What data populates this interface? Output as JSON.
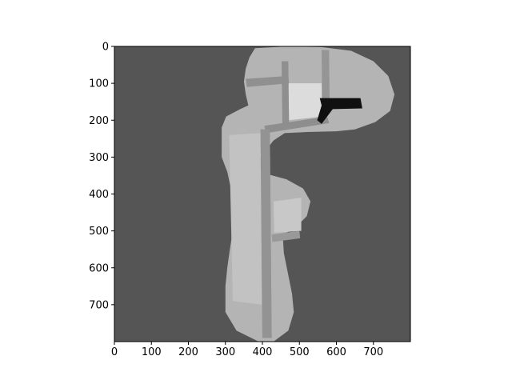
{
  "chart_data": {
    "type": "heatmap",
    "title": "",
    "xlabel": "",
    "ylabel": "",
    "xlim": [
      0,
      800
    ],
    "ylim": [
      800,
      0
    ],
    "x_ticks": [
      "0",
      "100",
      "200",
      "300",
      "400",
      "500",
      "600",
      "700"
    ],
    "y_ticks": [
      "0",
      "100",
      "200",
      "300",
      "400",
      "500",
      "600",
      "700"
    ],
    "colormap": "gray",
    "background_value_color": "#555555",
    "map_outline": [
      [
        380,
        5
      ],
      [
        470,
        0
      ],
      [
        560,
        2
      ],
      [
        640,
        12
      ],
      [
        700,
        40
      ],
      [
        740,
        80
      ],
      [
        757,
        130
      ],
      [
        745,
        175
      ],
      [
        705,
        205
      ],
      [
        650,
        225
      ],
      [
        600,
        230
      ],
      [
        520,
        232
      ],
      [
        460,
        235
      ],
      [
        430,
        255
      ],
      [
        395,
        300
      ],
      [
        390,
        330
      ],
      [
        420,
        348
      ],
      [
        465,
        360
      ],
      [
        510,
        385
      ],
      [
        530,
        420
      ],
      [
        520,
        460
      ],
      [
        485,
        495
      ],
      [
        455,
        510
      ],
      [
        458,
        560
      ],
      [
        470,
        620
      ],
      [
        480,
        670
      ],
      [
        485,
        720
      ],
      [
        470,
        770
      ],
      [
        430,
        800
      ],
      [
        390,
        800
      ],
      [
        330,
        770
      ],
      [
        300,
        720
      ],
      [
        300,
        650
      ],
      [
        305,
        600
      ],
      [
        312,
        550
      ],
      [
        320,
        500
      ],
      [
        325,
        460
      ],
      [
        318,
        400
      ],
      [
        305,
        340
      ],
      [
        290,
        300
      ],
      [
        290,
        220
      ],
      [
        302,
        190
      ],
      [
        340,
        170
      ],
      [
        362,
        160
      ],
      [
        355,
        130
      ],
      [
        350,
        95
      ],
      [
        355,
        60
      ],
      [
        365,
        30
      ]
    ],
    "corridors": [
      {
        "polygon": [
          [
            355,
            88
          ],
          [
            470,
            80
          ],
          [
            472,
            100
          ],
          [
            358,
            110
          ]
        ],
        "shade": "#909090"
      },
      {
        "polygon": [
          [
            452,
            40
          ],
          [
            470,
            40
          ],
          [
            472,
            220
          ],
          [
            454,
            222
          ]
        ],
        "shade": "#8f8f8f"
      },
      {
        "polygon": [
          [
            560,
            10
          ],
          [
            580,
            10
          ],
          [
            582,
            180
          ],
          [
            562,
            180
          ]
        ],
        "shade": "#959595"
      },
      {
        "polygon": [
          [
            405,
            215
          ],
          [
            575,
            190
          ],
          [
            580,
            208
          ],
          [
            410,
            235
          ]
        ],
        "shade": "#8e8e8e"
      },
      {
        "polygon": [
          [
            395,
            225
          ],
          [
            420,
            225
          ],
          [
            425,
            790
          ],
          [
            400,
            790
          ]
        ],
        "shade": "#939393"
      },
      {
        "polygon": [
          [
            395,
            225
          ],
          [
            420,
            225
          ],
          [
            425,
            790
          ],
          [
            400,
            790
          ]
        ],
        "shade": "#939393"
      },
      {
        "polygon": [
          [
            425,
            510
          ],
          [
            500,
            500
          ],
          [
            502,
            520
          ],
          [
            427,
            530
          ]
        ],
        "shade": "#999999"
      }
    ],
    "dark_region": {
      "polygon": [
        [
          555,
          140
        ],
        [
          665,
          140
        ],
        [
          670,
          168
        ],
        [
          590,
          170
        ],
        [
          560,
          210
        ],
        [
          548,
          200
        ],
        [
          560,
          160
        ]
      ],
      "shade": "#101010"
    }
  }
}
